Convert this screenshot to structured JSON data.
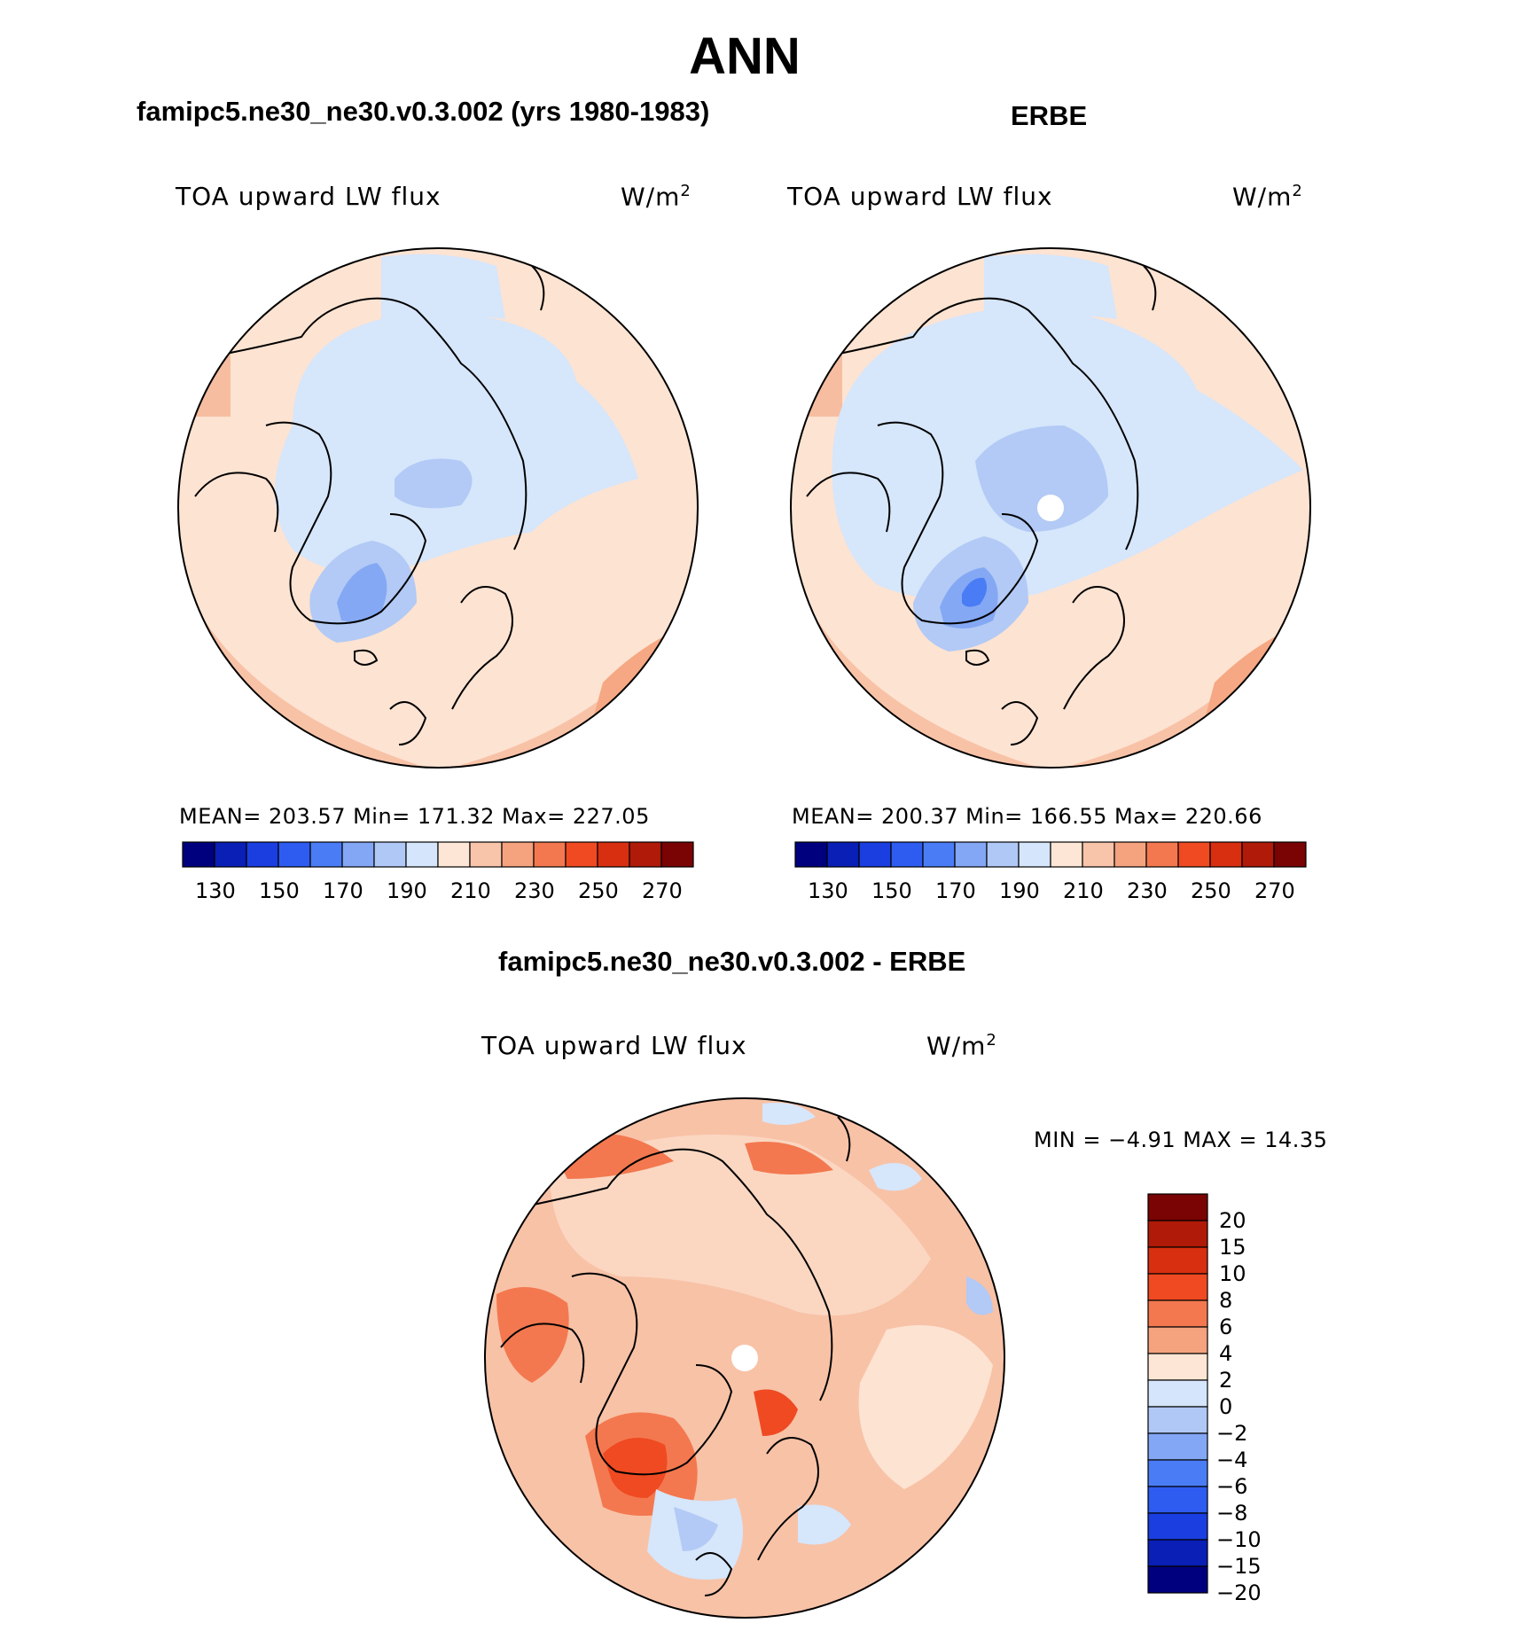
{
  "page_title": "ANN",
  "colors": {
    "ocean_light": "#fbe3d3",
    "coast": "#000000",
    "abs_scale": [
      "#00007f",
      "#0a1fb5",
      "#1a3ee0",
      "#2f5cf0",
      "#4a7cf5",
      "#83a7f4",
      "#b0c8f5",
      "#d5e5fb",
      "#fde6d5",
      "#f8c4aa",
      "#f5a27f",
      "#f3784f",
      "#ef4a22",
      "#d72f10",
      "#b01a08",
      "#7a0303"
    ],
    "diff_scale": [
      "#7a0303",
      "#b01a08",
      "#d72f10",
      "#ef4a22",
      "#f3784f",
      "#f5a27f",
      "#fde6d5",
      "#d5e5fb",
      "#b0c8f5",
      "#83a7f4",
      "#4a7cf5",
      "#2f5cf0",
      "#1a3ee0",
      "#0a1fb5",
      "#00007f"
    ]
  },
  "panels": [
    {
      "id": "model",
      "case_title": "famipc5.ne30_ne30.v0.3.002 (yrs 1980-1983)",
      "field_name": "TOA upward LW flux",
      "units": "W/m",
      "units_sup": "2",
      "stats": "MEAN= 203.57   Min= 171.32   Max= 227.05",
      "colorbar_ticks": [
        "130",
        "150",
        "170",
        "190",
        "210",
        "230",
        "250",
        "270"
      ]
    },
    {
      "id": "obs",
      "case_title": "ERBE",
      "field_name": "TOA upward LW flux",
      "units": "W/m",
      "units_sup": "2",
      "stats": "MEAN= 200.37   Min= 166.55   Max= 220.66",
      "colorbar_ticks": [
        "130",
        "150",
        "170",
        "190",
        "210",
        "230",
        "250",
        "270"
      ]
    }
  ],
  "difference": {
    "case_title": "famipc5.ne30_ne30.v0.3.002 - ERBE",
    "field_name": "TOA upward LW flux",
    "units": "W/m",
    "units_sup": "2",
    "minmax": "MIN =   −4.91  MAX =   14.35",
    "colorbar_ticks": [
      "20",
      "15",
      "10",
      "8",
      "6",
      "4",
      "2",
      "0",
      "−2",
      "−4",
      "−6",
      "−8",
      "−10",
      "−15",
      "−20"
    ]
  },
  "chart_data": {
    "type": "heatmap",
    "projection": "north polar stereographic",
    "variable": "TOA upward LW flux",
    "units": "W/m2",
    "season": "ANN",
    "panels": [
      {
        "name": "famipc5.ne30_ne30.v0.3.002 (yrs 1980-1983)",
        "mean": 203.57,
        "min": 171.32,
        "max": 227.05,
        "contour_levels": [
          130,
          140,
          150,
          160,
          170,
          180,
          190,
          200,
          210,
          220,
          230,
          240,
          250,
          260,
          270
        ]
      },
      {
        "name": "ERBE",
        "mean": 200.37,
        "min": 166.55,
        "max": 220.66,
        "contour_levels": [
          130,
          140,
          150,
          160,
          170,
          180,
          190,
          200,
          210,
          220,
          230,
          240,
          250,
          260,
          270
        ]
      },
      {
        "name": "famipc5.ne30_ne30.v0.3.002 - ERBE",
        "min": -4.91,
        "max": 14.35,
        "contour_levels": [
          -20,
          -15,
          -10,
          -8,
          -6,
          -4,
          -2,
          0,
          2,
          4,
          6,
          8,
          10,
          15,
          20
        ]
      }
    ]
  }
}
